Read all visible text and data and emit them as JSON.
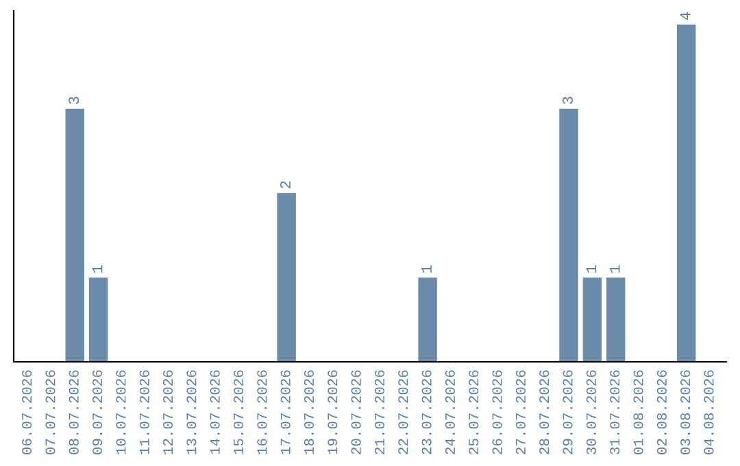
{
  "chart_data": {
    "type": "bar",
    "categories": [
      "06.07.2026",
      "07.07.2026",
      "08.07.2026",
      "09.07.2026",
      "10.07.2026",
      "11.07.2026",
      "12.07.2026",
      "13.07.2026",
      "14.07.2026",
      "15.07.2026",
      "16.07.2026",
      "17.07.2026",
      "18.07.2026",
      "19.07.2026",
      "20.07.2026",
      "21.07.2026",
      "22.07.2026",
      "23.07.2026",
      "24.07.2026",
      "25.07.2026",
      "26.07.2026",
      "27.07.2026",
      "28.07.2026",
      "29.07.2026",
      "30.07.2026",
      "31.07.2026",
      "01.08.2026",
      "02.08.2026",
      "03.08.2026",
      "04.08.2026"
    ],
    "values": [
      0,
      0,
      3,
      1,
      0,
      0,
      0,
      0,
      0,
      0,
      0,
      2,
      0,
      0,
      0,
      0,
      0,
      1,
      0,
      0,
      0,
      0,
      0,
      3,
      1,
      1,
      0,
      0,
      4,
      0
    ],
    "value_labels": [
      null,
      null,
      "3",
      "1",
      null,
      null,
      null,
      null,
      null,
      null,
      null,
      "2",
      null,
      null,
      null,
      null,
      null,
      "1",
      null,
      null,
      null,
      null,
      null,
      "3",
      "1",
      "1",
      null,
      null,
      "4",
      null
    ],
    "color": "#6a8caa",
    "tick_labels": "x",
    "grid": false,
    "legend": false
  }
}
